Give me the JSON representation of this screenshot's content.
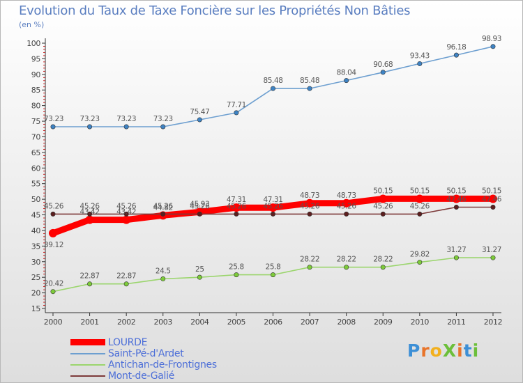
{
  "title": "Evolution du Taux de Taxe Foncière sur les Propriétés Non Bâties",
  "subtitle": "(en %)",
  "logo_text": "ProXiti",
  "colors": {
    "title": "#5a7ec0",
    "axis": "#333333",
    "grid_tick": "#c00000"
  },
  "chart_data": {
    "type": "line",
    "title": "Evolution du Taux de Taxe Foncière sur les Propriétés Non Bâties",
    "subtitle": "(en %)",
    "xlabel": "",
    "ylabel": "",
    "categories": [
      "2000",
      "2001",
      "2002",
      "2003",
      "2004",
      "2005",
      "2006",
      "2007",
      "2008",
      "2009",
      "2010",
      "2011",
      "2012"
    ],
    "ylim": [
      15,
      100
    ],
    "yticks": [
      15,
      20,
      25,
      30,
      35,
      40,
      45,
      50,
      55,
      60,
      65,
      70,
      75,
      80,
      85,
      90,
      95,
      100
    ],
    "grid": false,
    "legend_position": "bottom-left",
    "series": [
      {
        "name": "LOURDE",
        "color": "#ff0000",
        "values": [
          39.12,
          43.42,
          43.42,
          44.82,
          45.93,
          47.31,
          47.31,
          48.73,
          48.73,
          50.15,
          50.15,
          50.15,
          50.15
        ],
        "labels": [
          "39.12",
          "43.42",
          "43.42",
          "44.82",
          "45.93",
          "47.31",
          "47.31",
          "48.73",
          "48.73",
          "50.15",
          "50.15",
          "50.15",
          "50.15"
        ]
      },
      {
        "name": "Saint-Pé-d'Ardet",
        "color": "#6d9fd0",
        "values": [
          73.23,
          73.23,
          73.23,
          73.23,
          75.47,
          77.71,
          85.48,
          85.48,
          88.04,
          90.68,
          93.43,
          96.18,
          98.93
        ],
        "labels": [
          "73.23",
          "73.23",
          "73.23",
          "73.23",
          "75.47",
          "77.71",
          "85.48",
          "85.48",
          "88.04",
          "90.68",
          "93.43",
          "96.18",
          "98.93"
        ]
      },
      {
        "name": "Antichan-de-Frontignes",
        "color": "#9bd56d",
        "values": [
          20.42,
          22.87,
          22.87,
          24.5,
          25,
          25.8,
          25.8,
          28.22,
          28.22,
          28.22,
          29.82,
          31.27,
          31.27
        ],
        "labels": [
          "20.42",
          "22.87",
          "22.87",
          "24.5",
          "25",
          "25.8",
          "25.8",
          "28.22",
          "28.22",
          "28.22",
          "29.82",
          "31.27",
          "31.27"
        ]
      },
      {
        "name": "Mont-de-Galié",
        "color": "#7d3a3a",
        "values": [
          45.26,
          45.26,
          45.26,
          45.26,
          45.26,
          45.26,
          45.26,
          45.26,
          45.26,
          45.26,
          45.26,
          47.46,
          47.46
        ],
        "labels": [
          "45.26",
          "45.26",
          "45.26",
          "45.26",
          "45.26",
          "45.26",
          "45.26",
          "45.26",
          "45.26",
          "45.26",
          "45.26",
          "47.46",
          "47.46"
        ]
      }
    ]
  }
}
